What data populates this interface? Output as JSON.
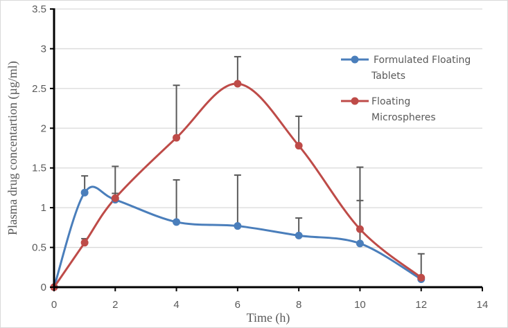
{
  "chart_data": {
    "type": "line",
    "title": "",
    "xlabel": "Time (h)",
    "ylabel": "Plasma drug concentartion (µg/ml)",
    "xlim": [
      0,
      14
    ],
    "ylim": [
      0,
      3.5
    ],
    "xticks": [
      "0",
      "2",
      "4",
      "6",
      "8",
      "10",
      "12",
      "14"
    ],
    "yticks": [
      "0",
      "0.5",
      "1",
      "1.5",
      "2",
      "2.5",
      "3",
      "3.5"
    ],
    "grid": "horizontal",
    "legend_position": "right",
    "x": [
      0,
      1,
      2,
      4,
      6,
      8,
      10,
      12
    ],
    "series": [
      {
        "name": "Formulated Floating Tablets",
        "legend_lines": [
          "Formulated Floating",
          "Tablets"
        ],
        "color": "#4a7ebb",
        "values": [
          0,
          1.19,
          1.1,
          0.82,
          0.77,
          0.65,
          0.55,
          0.1
        ],
        "error_upper": [
          0,
          1.4,
          1.18,
          1.35,
          1.41,
          0.87,
          1.09,
          0.1
        ]
      },
      {
        "name": "Floating Microspheres",
        "legend_lines": [
          "Floating",
          "Microspheres"
        ],
        "color": "#be4b48",
        "values": [
          0,
          0.56,
          1.12,
          1.88,
          2.56,
          1.78,
          0.73,
          0.12
        ],
        "error_upper": [
          0,
          0.61,
          1.52,
          2.54,
          2.9,
          2.15,
          1.51,
          0.42
        ]
      }
    ]
  }
}
